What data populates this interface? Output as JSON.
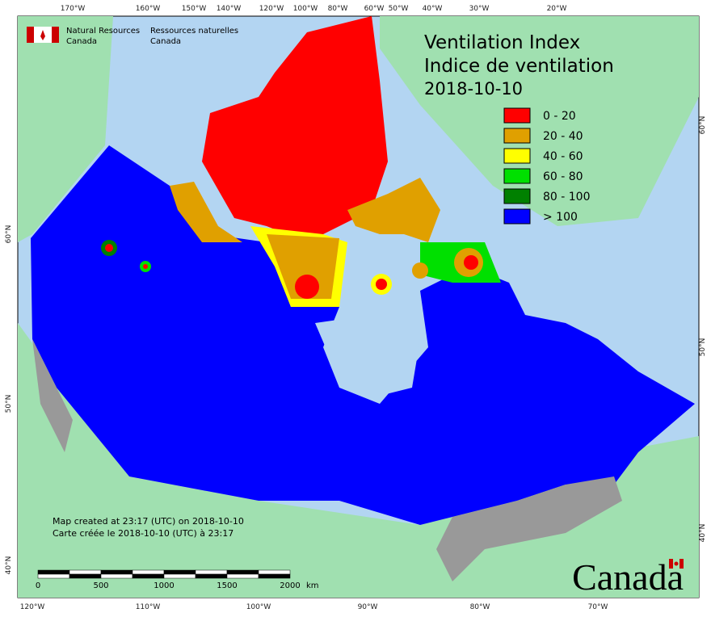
{
  "header": {
    "org_en_1": "Natural Resources",
    "org_en_2": "Canada",
    "org_fr_1": "Ressources naturelles",
    "org_fr_2": "Canada"
  },
  "title": {
    "line1": "Ventilation Index",
    "line2": "Indice de ventilation",
    "date": "2018-10-10"
  },
  "legend": [
    {
      "label": "0 - 20",
      "color": "#ff0000"
    },
    {
      "label": "20 - 40",
      "color": "#e0a000"
    },
    {
      "label": "40 - 60",
      "color": "#ffff00"
    },
    {
      "label": "60 - 80",
      "color": "#00e000"
    },
    {
      "label": "80 - 100",
      "color": "#008000"
    },
    {
      "label": "> 100",
      "color": "#0000ff"
    }
  ],
  "notes": [
    "Map created at 23:17 (UTC) on 2018-10-10",
    "Carte créée le 2018-10-10 (UTC) à 23:17"
  ],
  "scale_bar": {
    "ticks": [
      0,
      500,
      1000,
      1500,
      2000
    ],
    "unit": "km"
  },
  "graticule": {
    "top": [
      "170°W",
      "160°W",
      "150°W",
      "140°W",
      "120°W",
      "100°W",
      "80°W",
      "60°W",
      "50°W",
      "40°W",
      "30°W",
      "20°W"
    ],
    "bottom": [
      "120°W",
      "110°W",
      "100°W",
      "90°W",
      "80°W",
      "70°W"
    ],
    "left": [
      "60°N",
      "50°N",
      "40°N"
    ],
    "right": [
      "60°N",
      "50°N",
      "40°N"
    ]
  },
  "wordmark": "Canada"
}
